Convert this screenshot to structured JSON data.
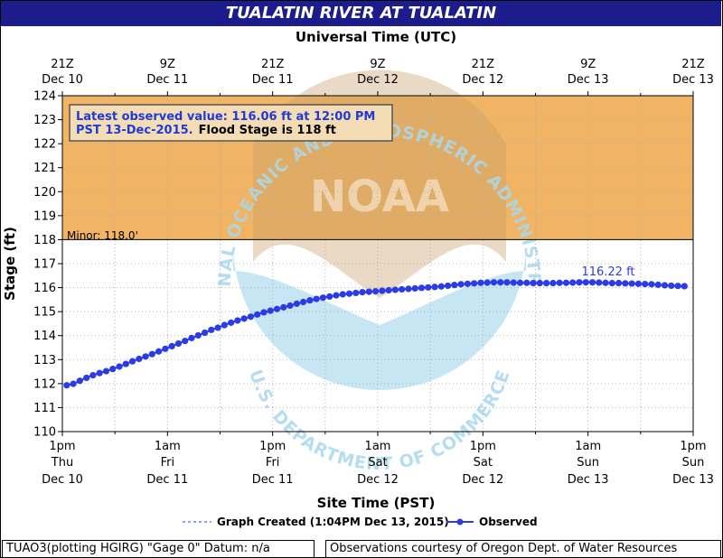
{
  "title": "TUALATIN RIVER AT TUALATIN",
  "top_axis_title": "Universal Time (UTC)",
  "bottom_axis_title": "Site Time (PST)",
  "y_axis_title": "Stage (ft)",
  "annotation": {
    "line1": "Latest observed value: 116.06 ft at 12:00 PM",
    "line2": "PST 13-Dec-2015.",
    "line2_bold": "Flood Stage is 118 ft"
  },
  "minor_label": "Minor: 118.0'",
  "peak_label": "116.22 ft",
  "legend": {
    "graph_created": "Graph Created (1:04PM Dec 13, 2015)",
    "observed": "Observed"
  },
  "footer": {
    "left": "TUAO3(plotting HGIRG) \"Gage 0\" Datum: n/a",
    "right": "Observations courtesy of Oregon Dept. of Water Resources"
  },
  "watermark": {
    "center_text": "NOAA",
    "ring_top": "NATIONAL OCEANIC AND ATMOSPHERIC ADMINISTRATION",
    "ring_bottom": "U.S. DEPARTMENT OF COMMERCE"
  },
  "colors": {
    "title_bg": "#1c1c8c",
    "flood_zone": "#f0b464",
    "series": "#2b3be6",
    "annotation_text": "#1f3bd6",
    "watermark_blue": "#a8d8ee",
    "watermark_tan": "#c8a068"
  },
  "chart_data": {
    "type": "line",
    "title": "TUALATIN RIVER AT TUALATIN",
    "ylabel": "Stage (ft)",
    "xlabel": "Site Time (PST)",
    "x_unit": "hours after Thu Dec 10 1pm PST",
    "xlim": [
      0,
      72
    ],
    "ylim": [
      110,
      124
    ],
    "yticks": [
      110,
      111,
      112,
      113,
      114,
      115,
      116,
      117,
      118,
      119,
      120,
      121,
      122,
      123,
      124
    ],
    "flood_stage": 118,
    "bottom_ticks": [
      {
        "x": 0,
        "l1": "1pm",
        "l2": "Thu",
        "l3": "Dec 10"
      },
      {
        "x": 12,
        "l1": "1am",
        "l2": "Fri",
        "l3": "Dec 11"
      },
      {
        "x": 24,
        "l1": "1pm",
        "l2": "Fri",
        "l3": "Dec 11"
      },
      {
        "x": 36,
        "l1": "1am",
        "l2": "Sat",
        "l3": "Dec 12"
      },
      {
        "x": 48,
        "l1": "1pm",
        "l2": "Sat",
        "l3": "Dec 12"
      },
      {
        "x": 60,
        "l1": "1am",
        "l2": "Sun",
        "l3": "Dec 13"
      },
      {
        "x": 72,
        "l1": "1pm",
        "l2": "Sun",
        "l3": "Dec 13"
      }
    ],
    "top_ticks": [
      {
        "x": 0,
        "l1": "21Z",
        "l2": "Dec 10"
      },
      {
        "x": 12,
        "l1": "9Z",
        "l2": "Dec 11"
      },
      {
        "x": 24,
        "l1": "21Z",
        "l2": "Dec 11"
      },
      {
        "x": 36,
        "l1": "9Z",
        "l2": "Dec 12"
      },
      {
        "x": 48,
        "l1": "21Z",
        "l2": "Dec 12"
      },
      {
        "x": 60,
        "l1": "9Z",
        "l2": "Dec 13"
      },
      {
        "x": 72,
        "l1": "21Z",
        "l2": "Dec 13"
      }
    ],
    "series": [
      {
        "name": "Observed",
        "x": [
          0.5,
          1.25,
          2,
          2.75,
          3.5,
          4.25,
          5,
          5.75,
          6.5,
          7.25,
          8,
          8.75,
          9.5,
          10.25,
          11,
          11.75,
          12.5,
          13.25,
          14,
          14.75,
          15.5,
          16.25,
          17,
          17.75,
          18.5,
          19.25,
          20,
          20.75,
          21.5,
          22.25,
          23,
          23.75,
          24.5,
          25.25,
          26,
          26.75,
          27.5,
          28.25,
          29,
          29.75,
          30.5,
          31.25,
          32,
          32.75,
          33.5,
          34.25,
          35,
          35.75,
          36.5,
          37.25,
          38,
          38.75,
          39.5,
          40.25,
          41,
          41.75,
          42.5,
          43.25,
          44,
          44.75,
          45.5,
          46.25,
          47,
          47.75,
          48.5,
          49.25,
          50,
          50.75,
          51.5,
          52.25,
          53,
          53.75,
          54.5,
          55.25,
          56,
          56.75,
          57.5,
          58.25,
          59,
          59.75,
          60.5,
          61.25,
          62,
          62.75,
          63.5,
          64.25,
          65,
          65.75,
          66.5,
          67.25,
          68,
          68.75,
          69.5,
          70.25,
          71
        ],
        "y": [
          111.93,
          111.99,
          112.12,
          112.24,
          112.35,
          112.44,
          112.52,
          112.61,
          112.71,
          112.82,
          112.93,
          113.03,
          113.13,
          113.23,
          113.34,
          113.45,
          113.56,
          113.67,
          113.78,
          113.9,
          114.01,
          114.12,
          114.24,
          114.33,
          114.44,
          114.54,
          114.63,
          114.71,
          114.79,
          114.88,
          114.97,
          115.04,
          115.11,
          115.18,
          115.25,
          115.33,
          115.4,
          115.47,
          115.53,
          115.58,
          115.63,
          115.68,
          115.72,
          115.75,
          115.78,
          115.81,
          115.83,
          115.85,
          115.87,
          115.89,
          115.91,
          115.93,
          115.95,
          115.97,
          115.99,
          116.01,
          116.03,
          116.05,
          116.08,
          116.11,
          116.14,
          116.16,
          116.18,
          116.2,
          116.21,
          116.22,
          116.22,
          116.22,
          116.21,
          116.2,
          116.2,
          116.19,
          116.19,
          116.19,
          116.19,
          116.2,
          116.2,
          116.21,
          116.22,
          116.22,
          116.22,
          116.21,
          116.2,
          116.19,
          116.19,
          116.18,
          116.17,
          116.16,
          116.15,
          116.14,
          116.12,
          116.1,
          116.08,
          116.07,
          116.06
        ]
      }
    ]
  }
}
